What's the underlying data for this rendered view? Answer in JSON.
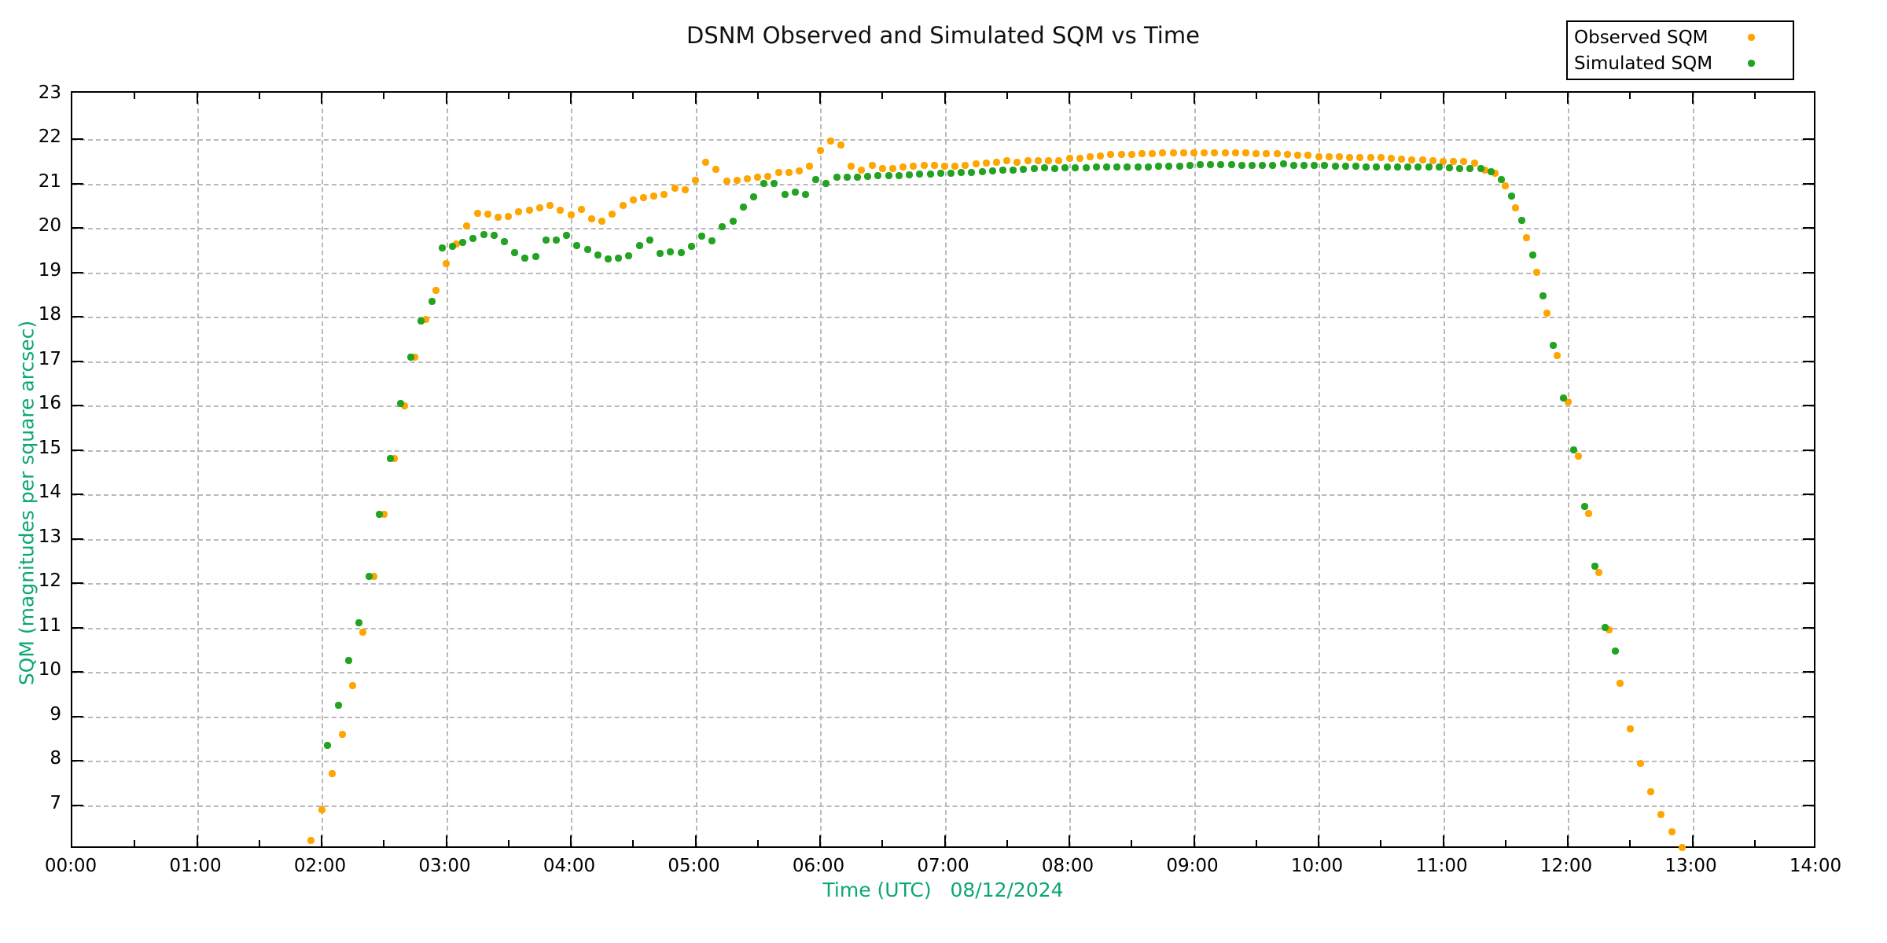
{
  "title": "DSNM Observed and Simulated SQM vs Time",
  "legend": {
    "items": [
      {
        "label": "Observed SQM",
        "series": "observed"
      },
      {
        "label": "Simulated SQM",
        "series": "simulated"
      }
    ]
  },
  "axes": {
    "x": {
      "label": "Time (UTC)   08/12/2024",
      "ticks": [
        "00:00",
        "01:00",
        "02:00",
        "03:00",
        "04:00",
        "05:00",
        "06:00",
        "07:00",
        "08:00",
        "09:00",
        "10:00",
        "11:00",
        "12:00",
        "13:00",
        "14:00"
      ],
      "range_hours": [
        0,
        14
      ],
      "minor_tick_minutes": 30,
      "grid": true
    },
    "y": {
      "label": "SQM (magnitudes per square arcsec)",
      "ticks": [
        7,
        8,
        9,
        10,
        11,
        12,
        13,
        14,
        15,
        16,
        17,
        18,
        19,
        20,
        21,
        22,
        23
      ],
      "range": [
        6.0,
        23.05
      ],
      "grid": true
    }
  },
  "colors": {
    "observed": "#FFA500",
    "simulated": "#22A322",
    "axis_text_accent": "#0CA674",
    "grid": "#B9B9B9",
    "border": "#000000",
    "background": "#FFFFFF",
    "title_text": "#111111"
  },
  "chart_data": {
    "type": "scatter",
    "title": "DSNM Observed and Simulated SQM vs Time",
    "xlabel": "Time (UTC)   08/12/2024",
    "ylabel": "SQM (magnitudes per square arcsec)",
    "date": "08/12/2024",
    "x_unit": "time (HH:MM UTC)",
    "xlim_hours": [
      0,
      14
    ],
    "ylim": [
      6.0,
      23.05
    ],
    "grid": true,
    "legend_position": "top-right-outside",
    "series": [
      {
        "name": "Observed SQM",
        "color": "#FFA500",
        "points": [
          [
            "01:55",
            6.2
          ],
          [
            "02:00",
            6.9
          ],
          [
            "02:05",
            7.7
          ],
          [
            "02:10",
            8.6
          ],
          [
            "02:15",
            9.7
          ],
          [
            "02:20",
            10.9
          ],
          [
            "02:25",
            12.15
          ],
          [
            "02:30",
            13.55
          ],
          [
            "02:35",
            14.8
          ],
          [
            "02:40",
            16.0
          ],
          [
            "02:45",
            17.1
          ],
          [
            "02:50",
            17.95
          ],
          [
            "02:55",
            18.6
          ],
          [
            "03:00",
            19.2
          ],
          [
            "03:05",
            19.65
          ],
          [
            "03:10",
            20.05
          ],
          [
            "03:15",
            20.33
          ],
          [
            "03:20",
            20.31
          ],
          [
            "03:25",
            20.24
          ],
          [
            "03:30",
            20.26
          ],
          [
            "03:35",
            20.36
          ],
          [
            "03:40",
            20.4
          ],
          [
            "03:45",
            20.46
          ],
          [
            "03:50",
            20.51
          ],
          [
            "03:55",
            20.4
          ],
          [
            "04:00",
            20.3
          ],
          [
            "04:05",
            20.42
          ],
          [
            "04:10",
            20.2
          ],
          [
            "04:15",
            20.15
          ],
          [
            "04:20",
            20.32
          ],
          [
            "04:25",
            20.51
          ],
          [
            "04:30",
            20.63
          ],
          [
            "04:35",
            20.68
          ],
          [
            "04:40",
            20.72
          ],
          [
            "04:45",
            20.75
          ],
          [
            "04:50",
            20.9
          ],
          [
            "04:55",
            20.86
          ],
          [
            "05:00",
            21.08
          ],
          [
            "05:05",
            21.49
          ],
          [
            "05:10",
            21.32
          ],
          [
            "05:15",
            21.05
          ],
          [
            "05:20",
            21.08
          ],
          [
            "05:25",
            21.11
          ],
          [
            "05:30",
            21.15
          ],
          [
            "05:35",
            21.16
          ],
          [
            "05:40",
            21.25
          ],
          [
            "05:45",
            21.25
          ],
          [
            "05:50",
            21.29
          ],
          [
            "05:55",
            21.4
          ],
          [
            "06:00",
            21.74
          ],
          [
            "06:05",
            21.96
          ],
          [
            "06:10",
            21.88
          ],
          [
            "06:15",
            21.4
          ],
          [
            "06:20",
            21.31
          ],
          [
            "06:25",
            21.42
          ],
          [
            "06:30",
            21.35
          ],
          [
            "06:35",
            21.35
          ],
          [
            "06:40",
            21.37
          ],
          [
            "06:45",
            21.4
          ],
          [
            "06:50",
            21.41
          ],
          [
            "06:55",
            21.42
          ],
          [
            "07:00",
            21.4
          ],
          [
            "07:05",
            21.4
          ],
          [
            "07:10",
            21.42
          ],
          [
            "07:15",
            21.44
          ],
          [
            "07:20",
            21.46
          ],
          [
            "07:25",
            21.49
          ],
          [
            "07:30",
            21.51
          ],
          [
            "07:35",
            21.49
          ],
          [
            "07:40",
            21.52
          ],
          [
            "07:45",
            21.52
          ],
          [
            "07:50",
            21.51
          ],
          [
            "07:55",
            21.52
          ],
          [
            "08:00",
            21.57
          ],
          [
            "08:05",
            21.58
          ],
          [
            "08:10",
            21.61
          ],
          [
            "08:15",
            21.63
          ],
          [
            "08:20",
            21.66
          ],
          [
            "08:25",
            21.66
          ],
          [
            "08:30",
            21.66
          ],
          [
            "08:35",
            21.67
          ],
          [
            "08:40",
            21.67
          ],
          [
            "08:45",
            21.69
          ],
          [
            "08:50",
            21.69
          ],
          [
            "08:55",
            21.69
          ],
          [
            "09:00",
            21.7
          ],
          [
            "09:05",
            21.69
          ],
          [
            "09:10",
            21.7
          ],
          [
            "09:15",
            21.7
          ],
          [
            "09:20",
            21.69
          ],
          [
            "09:25",
            21.69
          ],
          [
            "09:30",
            21.68
          ],
          [
            "09:35",
            21.67
          ],
          [
            "09:40",
            21.68
          ],
          [
            "09:45",
            21.66
          ],
          [
            "09:50",
            21.65
          ],
          [
            "09:55",
            21.65
          ],
          [
            "10:00",
            21.61
          ],
          [
            "10:05",
            21.61
          ],
          [
            "10:10",
            21.61
          ],
          [
            "10:15",
            21.59
          ],
          [
            "10:20",
            21.59
          ],
          [
            "10:25",
            21.59
          ],
          [
            "10:30",
            21.59
          ],
          [
            "10:35",
            21.58
          ],
          [
            "10:40",
            21.55
          ],
          [
            "10:45",
            21.54
          ],
          [
            "10:50",
            21.53
          ],
          [
            "10:55",
            21.52
          ],
          [
            "11:00",
            21.5
          ],
          [
            "11:05",
            21.5
          ],
          [
            "11:10",
            21.5
          ],
          [
            "11:15",
            21.47
          ],
          [
            "11:20",
            21.31
          ],
          [
            "11:25",
            21.24
          ],
          [
            "11:30",
            20.95
          ],
          [
            "11:35",
            20.46
          ],
          [
            "11:40",
            19.78
          ],
          [
            "11:45",
            19.0
          ],
          [
            "11:50",
            18.08
          ],
          [
            "11:55",
            17.12
          ],
          [
            "12:00",
            16.08
          ],
          [
            "12:05",
            14.86
          ],
          [
            "12:10",
            13.57
          ],
          [
            "12:15",
            12.24
          ],
          [
            "12:20",
            10.95
          ],
          [
            "12:25",
            9.74
          ],
          [
            "12:30",
            8.72
          ],
          [
            "12:35",
            7.94
          ],
          [
            "12:40",
            7.3
          ],
          [
            "12:45",
            6.79
          ],
          [
            "12:50",
            6.4
          ],
          [
            "12:55",
            6.05
          ]
        ]
      },
      {
        "name": "Simulated SQM",
        "color": "#22A322",
        "points": [
          [
            "02:03",
            8.35
          ],
          [
            "02:08",
            9.25
          ],
          [
            "02:13",
            10.25
          ],
          [
            "02:18",
            11.1
          ],
          [
            "02:23",
            12.15
          ],
          [
            "02:28",
            13.55
          ],
          [
            "02:33",
            14.8
          ],
          [
            "02:38",
            16.05
          ],
          [
            "02:43",
            17.1
          ],
          [
            "02:48",
            17.9
          ],
          [
            "02:53",
            18.35
          ],
          [
            "02:58",
            19.55
          ],
          [
            "03:03",
            19.58
          ],
          [
            "03:08",
            19.67
          ],
          [
            "03:13",
            19.76
          ],
          [
            "03:18",
            19.86
          ],
          [
            "03:23",
            19.84
          ],
          [
            "03:28",
            19.69
          ],
          [
            "03:33",
            19.45
          ],
          [
            "03:38",
            19.33
          ],
          [
            "03:43",
            19.36
          ],
          [
            "03:48",
            19.73
          ],
          [
            "03:53",
            19.73
          ],
          [
            "03:58",
            19.84
          ],
          [
            "04:03",
            19.61
          ],
          [
            "04:08",
            19.52
          ],
          [
            "04:13",
            19.4
          ],
          [
            "04:18",
            19.31
          ],
          [
            "04:23",
            19.32
          ],
          [
            "04:28",
            19.38
          ],
          [
            "04:33",
            19.61
          ],
          [
            "04:38",
            19.73
          ],
          [
            "04:43",
            19.43
          ],
          [
            "04:48",
            19.46
          ],
          [
            "04:53",
            19.44
          ],
          [
            "04:58",
            19.58
          ],
          [
            "05:03",
            19.82
          ],
          [
            "05:08",
            19.71
          ],
          [
            "05:13",
            20.03
          ],
          [
            "05:18",
            20.15
          ],
          [
            "05:23",
            20.47
          ],
          [
            "05:28",
            20.71
          ],
          [
            "05:33",
            21.0
          ],
          [
            "05:38",
            21.0
          ],
          [
            "05:43",
            20.75
          ],
          [
            "05:48",
            20.81
          ],
          [
            "05:53",
            20.75
          ],
          [
            "05:58",
            21.1
          ],
          [
            "06:03",
            21.0
          ],
          [
            "06:08",
            21.14
          ],
          [
            "06:13",
            21.14
          ],
          [
            "06:18",
            21.15
          ],
          [
            "06:23",
            21.17
          ],
          [
            "06:28",
            21.18
          ],
          [
            "06:33",
            21.18
          ],
          [
            "06:38",
            21.19
          ],
          [
            "06:43",
            21.2
          ],
          [
            "06:48",
            21.21
          ],
          [
            "06:53",
            21.22
          ],
          [
            "06:58",
            21.23
          ],
          [
            "07:03",
            21.24
          ],
          [
            "07:08",
            21.26
          ],
          [
            "07:13",
            21.26
          ],
          [
            "07:18",
            21.27
          ],
          [
            "07:23",
            21.28
          ],
          [
            "07:28",
            21.3
          ],
          [
            "07:33",
            21.3
          ],
          [
            "07:38",
            21.32
          ],
          [
            "07:43",
            21.34
          ],
          [
            "07:48",
            21.36
          ],
          [
            "07:53",
            21.34
          ],
          [
            "07:58",
            21.36
          ],
          [
            "08:03",
            21.36
          ],
          [
            "08:08",
            21.36
          ],
          [
            "08:13",
            21.37
          ],
          [
            "08:18",
            21.37
          ],
          [
            "08:23",
            21.37
          ],
          [
            "08:28",
            21.38
          ],
          [
            "08:33",
            21.38
          ],
          [
            "08:38",
            21.38
          ],
          [
            "08:43",
            21.39
          ],
          [
            "08:48",
            21.39
          ],
          [
            "08:53",
            21.4
          ],
          [
            "08:58",
            21.41
          ],
          [
            "09:03",
            21.43
          ],
          [
            "09:08",
            21.43
          ],
          [
            "09:13",
            21.43
          ],
          [
            "09:18",
            21.43
          ],
          [
            "09:23",
            21.42
          ],
          [
            "09:28",
            21.42
          ],
          [
            "09:33",
            21.42
          ],
          [
            "09:38",
            21.42
          ],
          [
            "09:43",
            21.44
          ],
          [
            "09:48",
            21.42
          ],
          [
            "09:53",
            21.42
          ],
          [
            "09:58",
            21.42
          ],
          [
            "10:03",
            21.41
          ],
          [
            "10:08",
            21.4
          ],
          [
            "10:13",
            21.39
          ],
          [
            "10:18",
            21.39
          ],
          [
            "10:23",
            21.38
          ],
          [
            "10:28",
            21.37
          ],
          [
            "10:33",
            21.37
          ],
          [
            "10:38",
            21.38
          ],
          [
            "10:43",
            21.37
          ],
          [
            "10:48",
            21.37
          ],
          [
            "10:53",
            21.37
          ],
          [
            "10:58",
            21.37
          ],
          [
            "11:03",
            21.36
          ],
          [
            "11:08",
            21.35
          ],
          [
            "11:13",
            21.34
          ],
          [
            "11:18",
            21.35
          ],
          [
            "11:23",
            21.27
          ],
          [
            "11:28",
            21.09
          ],
          [
            "11:33",
            20.73
          ],
          [
            "11:38",
            20.18
          ],
          [
            "11:43",
            19.4
          ],
          [
            "11:48",
            18.48
          ],
          [
            "11:53",
            17.35
          ],
          [
            "11:58",
            16.17
          ],
          [
            "12:03",
            15.01
          ],
          [
            "12:08",
            13.73
          ],
          [
            "12:13",
            12.39
          ],
          [
            "12:18",
            11.0
          ],
          [
            "12:23",
            10.47
          ]
        ]
      }
    ]
  }
}
